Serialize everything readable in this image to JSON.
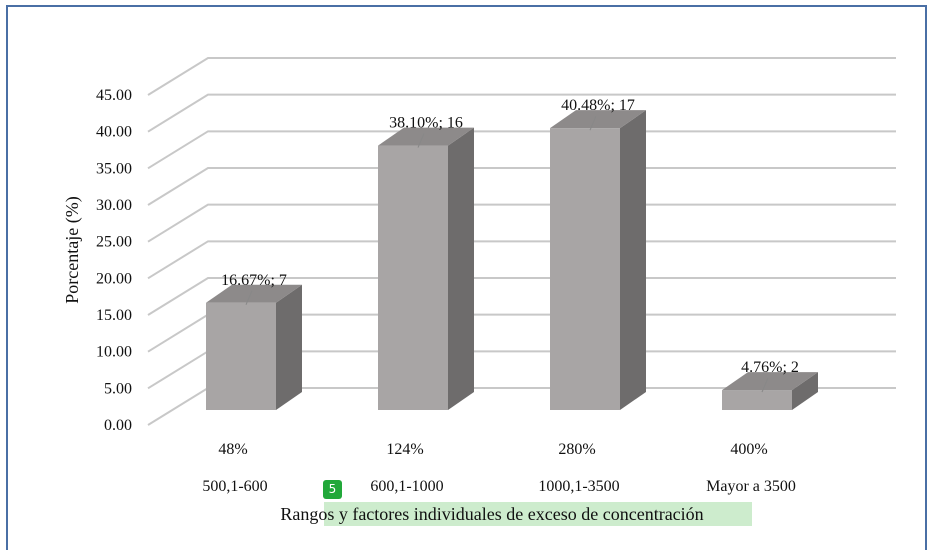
{
  "chart_data": {
    "type": "bar",
    "ylabel": "Porcentaje (%)",
    "xlabel": "Rangos y factores individuales de exceso de concentración",
    "xlabel_prefix": "Rangos y ",
    "xlabel_highlight": "factores individuales de exceso de concentración",
    "ylim": [
      0,
      45
    ],
    "yticks": [
      "0.00",
      "5.00",
      "10.00",
      "15.00",
      "20.00",
      "25.00",
      "30.00",
      "35.00",
      "40.00",
      "45.00"
    ],
    "categories": [
      "500,1-600",
      "600,1-1000",
      "1000,1-3500",
      "Mayor a 3500"
    ],
    "factors": [
      "48%",
      "124%",
      "280%",
      "400%"
    ],
    "values": [
      16.67,
      38.1,
      40.48,
      4.76
    ],
    "counts": [
      7,
      16,
      17,
      2
    ],
    "data_labels": [
      "16.67%; 7",
      "38.10%; 16",
      "40.48%; 17",
      "4.76%; 2"
    ],
    "grid": true,
    "bar_color": "#a8a5a5",
    "bar_side_color": "#6e6c6c",
    "bar_top_color": "#8d8a8a",
    "grid_color": "#c8c8c8"
  },
  "annotation": {
    "badge": "5",
    "highlight_color": "#cdeccd"
  }
}
